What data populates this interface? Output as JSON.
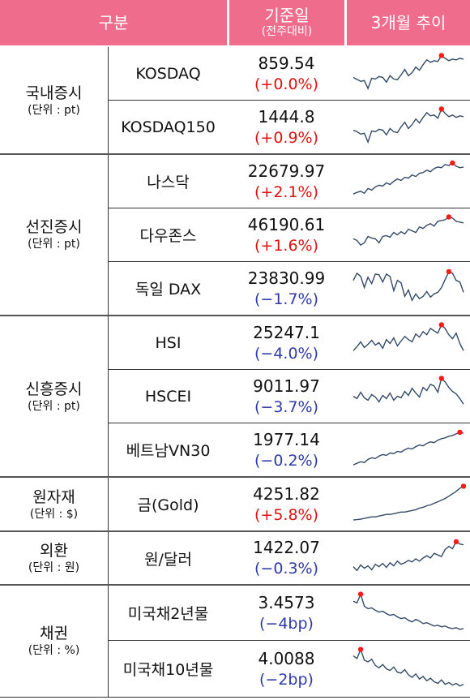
{
  "header": {
    "col_category": "구분",
    "col_value": "기준일",
    "col_value_sub": "(전주대비)",
    "col_trend": "3개월 추이"
  },
  "groups": [
    {
      "label": "국내증시",
      "unit": "(단위 : pt)"
    },
    {
      "label": "선진증시",
      "unit": "(단위 : pt)"
    },
    {
      "label": "신흥증시",
      "unit": "(단위 : pt)"
    },
    {
      "label": "원자재",
      "unit": "(단위 : $)"
    },
    {
      "label": "외환",
      "unit": "(단위 : 원)"
    },
    {
      "label": "채권",
      "unit": "(단위 : %)"
    }
  ],
  "rows": [
    {
      "name": "KOSDAQ",
      "value": "859.54",
      "change": "(+0.0%)",
      "direction": "up",
      "trend": [
        0.4,
        0.35,
        0.3,
        0.32,
        0.12,
        0.38,
        0.36,
        0.42,
        0.4,
        0.28,
        0.44,
        0.36,
        0.34,
        0.46,
        0.6,
        0.44,
        0.52,
        0.66,
        0.58,
        0.72,
        0.84,
        0.78,
        0.82,
        0.8,
        0.95,
        0.88,
        0.82,
        0.86,
        0.84,
        0.88,
        0.86
      ]
    },
    {
      "name": "KOSDAQ150",
      "value": "1444.8",
      "change": "(+0.9%)",
      "direction": "up",
      "trend": [
        0.42,
        0.38,
        0.32,
        0.34,
        0.12,
        0.4,
        0.38,
        0.44,
        0.42,
        0.3,
        0.46,
        0.38,
        0.36,
        0.5,
        0.62,
        0.46,
        0.56,
        0.7,
        0.6,
        0.74,
        0.86,
        0.78,
        0.8,
        0.72,
        0.95,
        0.84,
        0.76,
        0.8,
        0.74,
        0.78,
        0.76
      ]
    },
    {
      "name": "나스닥",
      "value": "22679.97",
      "change": "(+2.1%)",
      "direction": "up",
      "trend": [
        0.18,
        0.22,
        0.25,
        0.2,
        0.32,
        0.28,
        0.36,
        0.4,
        0.38,
        0.46,
        0.42,
        0.5,
        0.56,
        0.52,
        0.6,
        0.58,
        0.66,
        0.62,
        0.7,
        0.72,
        0.78,
        0.74,
        0.82,
        0.86,
        0.84,
        0.92,
        0.9,
        0.96,
        0.88,
        0.84,
        0.86
      ]
    },
    {
      "name": "다우존스",
      "value": "46190.61",
      "change": "(+1.6%)",
      "direction": "up",
      "trend": [
        0.4,
        0.36,
        0.24,
        0.3,
        0.46,
        0.42,
        0.4,
        0.3,
        0.46,
        0.48,
        0.44,
        0.56,
        0.5,
        0.58,
        0.52,
        0.64,
        0.6,
        0.56,
        0.7,
        0.66,
        0.74,
        0.78,
        0.72,
        0.84,
        0.86,
        0.88,
        0.95,
        0.92,
        0.84,
        0.82,
        0.8
      ]
    },
    {
      "name": "독일 DAX",
      "value": "23830.99",
      "change": "(−1.7%)",
      "direction": "down",
      "trend": [
        0.7,
        0.88,
        0.8,
        0.52,
        0.78,
        0.62,
        0.86,
        0.84,
        0.66,
        0.86,
        0.8,
        0.44,
        0.7,
        0.64,
        0.3,
        0.46,
        0.2,
        0.36,
        0.24,
        0.3,
        0.42,
        0.28,
        0.36,
        0.4,
        0.52,
        0.72,
        0.92,
        0.88,
        0.7,
        0.66,
        0.4
      ]
    },
    {
      "name": "HSI",
      "value": "25247.1",
      "change": "(−4.0%)",
      "direction": "down",
      "trend": [
        0.3,
        0.4,
        0.52,
        0.38,
        0.46,
        0.56,
        0.44,
        0.5,
        0.36,
        0.58,
        0.48,
        0.62,
        0.42,
        0.54,
        0.66,
        0.58,
        0.52,
        0.72,
        0.64,
        0.78,
        0.7,
        0.86,
        0.8,
        0.74,
        0.95,
        0.86,
        0.7,
        0.6,
        0.74,
        0.48,
        0.3
      ]
    },
    {
      "name": "HSCEI",
      "value": "9011.97",
      "change": "(−3.7%)",
      "direction": "down",
      "trend": [
        0.5,
        0.44,
        0.6,
        0.46,
        0.4,
        0.54,
        0.48,
        0.36,
        0.52,
        0.44,
        0.58,
        0.4,
        0.5,
        0.46,
        0.62,
        0.52,
        0.7,
        0.58,
        0.48,
        0.72,
        0.64,
        0.8,
        0.76,
        0.6,
        0.95,
        0.86,
        0.72,
        0.62,
        0.56,
        0.44,
        0.3
      ]
    },
    {
      "name": "베트남VN30",
      "value": "1977.14",
      "change": "(−0.2%)",
      "direction": "down",
      "trend": [
        0.12,
        0.16,
        0.2,
        0.18,
        0.26,
        0.3,
        0.28,
        0.34,
        0.38,
        0.36,
        0.42,
        0.4,
        0.46,
        0.44,
        0.5,
        0.54,
        0.52,
        0.58,
        0.62,
        0.6,
        0.66,
        0.7,
        0.68,
        0.74,
        0.78,
        0.8,
        0.84,
        0.86,
        0.9,
        0.94,
        0.92
      ]
    },
    {
      "name": "금(Gold)",
      "value": "4251.82",
      "change": "(+5.8%)",
      "direction": "up",
      "trend": [
        0.1,
        0.11,
        0.12,
        0.14,
        0.16,
        0.18,
        0.18,
        0.2,
        0.22,
        0.24,
        0.24,
        0.26,
        0.28,
        0.3,
        0.3,
        0.32,
        0.34,
        0.36,
        0.4,
        0.42,
        0.46,
        0.48,
        0.52,
        0.56,
        0.6,
        0.64,
        0.7,
        0.76,
        0.82,
        0.9,
        0.95
      ]
    },
    {
      "name": "원/달러",
      "value": "1422.07",
      "change": "(−0.3%)",
      "direction": "down",
      "trend": [
        0.28,
        0.18,
        0.32,
        0.24,
        0.3,
        0.2,
        0.34,
        0.28,
        0.36,
        0.26,
        0.38,
        0.3,
        0.42,
        0.34,
        0.38,
        0.44,
        0.4,
        0.48,
        0.42,
        0.5,
        0.56,
        0.5,
        0.62,
        0.58,
        0.54,
        0.72,
        0.8,
        0.74,
        0.92,
        0.86,
        0.84
      ]
    },
    {
      "name": "미국채2년물",
      "value": "3.4573",
      "change": "(−4bp)",
      "direction": "down",
      "trend": [
        0.78,
        0.74,
        0.95,
        0.66,
        0.6,
        0.62,
        0.56,
        0.52,
        0.54,
        0.48,
        0.44,
        0.46,
        0.4,
        0.36,
        0.38,
        0.32,
        0.28,
        0.34,
        0.3,
        0.24,
        0.26,
        0.22,
        0.18,
        0.2,
        0.16,
        0.18,
        0.14,
        0.12,
        0.14,
        0.1,
        0.12
      ]
    },
    {
      "name": "미국채10년물",
      "value": "4.0088",
      "change": "(−2bp)",
      "direction": "down",
      "trend": [
        0.8,
        0.74,
        0.95,
        0.7,
        0.66,
        0.72,
        0.58,
        0.52,
        0.6,
        0.5,
        0.46,
        0.54,
        0.42,
        0.4,
        0.48,
        0.36,
        0.3,
        0.38,
        0.26,
        0.32,
        0.22,
        0.28,
        0.2,
        0.16,
        0.24,
        0.14,
        0.18,
        0.12,
        0.16,
        0.1,
        0.14
      ]
    }
  ],
  "colors": {
    "header_bg": "#f06c8c",
    "header_text": "#ffffff",
    "up": "#e01010",
    "down": "#2e3aa8",
    "sparkline": "#334a66",
    "peak_dot": "#ff1a1a"
  },
  "icons": {
    "peak_marker": "red-dot"
  }
}
